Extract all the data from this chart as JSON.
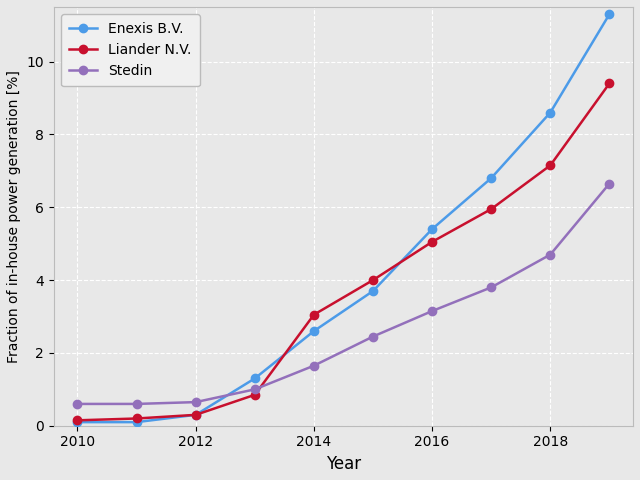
{
  "years": [
    2010,
    2011,
    2012,
    2013,
    2014,
    2015,
    2016,
    2017,
    2018,
    2019
  ],
  "enexis": [
    0.1,
    0.1,
    0.3,
    1.3,
    2.6,
    3.7,
    5.4,
    6.8,
    8.6,
    11.3
  ],
  "liander": [
    0.15,
    0.2,
    0.3,
    0.85,
    3.05,
    4.0,
    5.05,
    5.95,
    7.15,
    9.4
  ],
  "stedin": [
    0.6,
    0.6,
    0.65,
    1.0,
    1.65,
    2.45,
    3.15,
    3.8,
    4.7,
    6.65
  ],
  "enexis_label": "Enexis B.V.",
  "liander_label": "Liander N.V.",
  "stedin_label": "Stedin",
  "enexis_color": "#4C9BE8",
  "liander_color": "#C8102E",
  "stedin_color": "#9370BB",
  "xlabel": "Year",
  "ylabel": "Fraction of in-house power generation [%]",
  "ylim": [
    0,
    11.5
  ],
  "xlim": [
    2009.6,
    2019.4
  ],
  "bg_color": "#E8E8E8",
  "grid_color": "#FFFFFF",
  "marker": "o",
  "linewidth": 1.8,
  "markersize": 6,
  "xticks": [
    2010,
    2012,
    2014,
    2016,
    2018
  ],
  "yticks": [
    0,
    2,
    4,
    6,
    8,
    10
  ]
}
